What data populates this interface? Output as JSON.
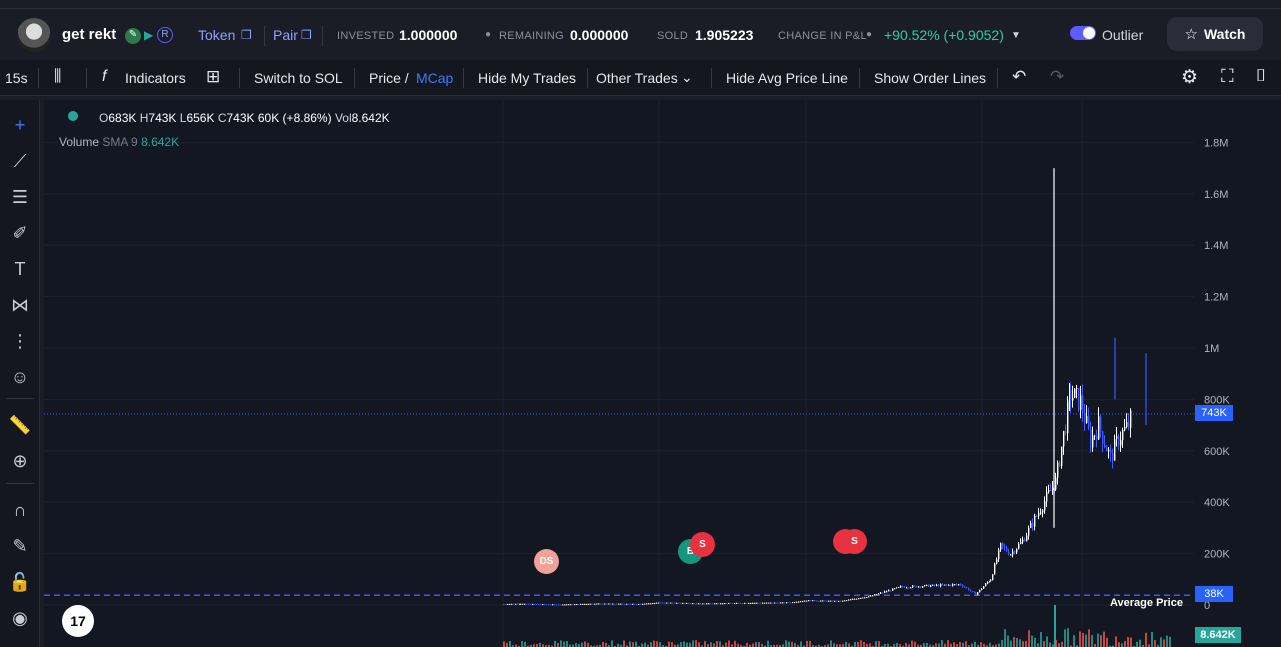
{
  "header": {
    "token_name": "get rekt",
    "token_link": "Token",
    "pair_link": "Pair",
    "invested_label": "INVESTED",
    "invested_value": "1.000000",
    "remaining_label": "REMAINING",
    "remaining_value": "0.000000",
    "sold_label": "SOLD",
    "sold_value": "1.905223",
    "pnl_label": "CHANGE IN P&L",
    "pnl_value": "+90.52% (+0.9052)",
    "outlier_label": "Outlier",
    "watch_label": "Watch"
  },
  "toolbar": {
    "interval": "15s",
    "indicators": "Indicators",
    "switch_sol": "Switch to SOL",
    "price": "Price /",
    "mcap": "MCap",
    "hide_my_trades": "Hide My Trades",
    "other_trades": "Other Trades",
    "hide_avg": "Hide Avg Price Line",
    "show_order": "Show Order Lines"
  },
  "legend": {
    "o_label": "O",
    "o": "683K",
    "h_label": "H",
    "h": "743K",
    "l_label": "L",
    "l": "656K",
    "c_label": "C",
    "c": "743K",
    "change": "60K (+8.86%)",
    "vol_label": "Vol",
    "vol": "8.642K",
    "volume_label": "Volume",
    "sma_label": "SMA 9",
    "sma_value": "8.642K"
  },
  "markers": {
    "ds": "DS",
    "b": "B",
    "s1": "S",
    "s2": "S"
  },
  "avg_price_label": "Average Price",
  "price_tag": "743K",
  "avg_tag": "38K",
  "volume_tag": "8.642K",
  "tv_logo": "17",
  "chart_data": {
    "type": "candlestick",
    "yticks": [
      "1.8M",
      "1.6M",
      "1.4M",
      "1.2M",
      "1M",
      "800K",
      "600K",
      "400K",
      "200K",
      "0"
    ],
    "ylim": [
      0,
      1900000
    ],
    "last_price": 743000,
    "average_price": 38000,
    "colors": {
      "up": "#ffffff",
      "down": "#3d5afe",
      "avg_line": "#3d5afe",
      "vol_up": "#26a69a",
      "vol_down": "#ef5350"
    }
  }
}
